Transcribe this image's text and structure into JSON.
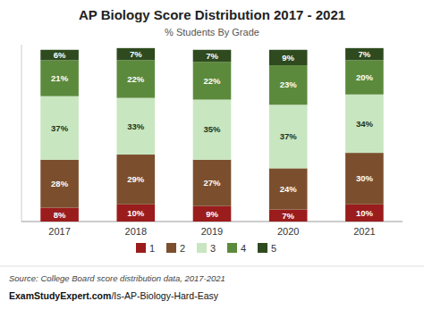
{
  "chart_data": {
    "type": "bar",
    "stacked": true,
    "title": "AP Biology Score Distribution 2017 - 2021",
    "subtitle": "% Students By Grade",
    "categories": [
      "2017",
      "2018",
      "2019",
      "2020",
      "2021"
    ],
    "series": [
      {
        "name": "1",
        "color": "#9B1C1C",
        "values": [
          8,
          10,
          9,
          7,
          10
        ],
        "value_labels": [
          "8%",
          "10%",
          "9%",
          "7%",
          "10%"
        ]
      },
      {
        "name": "2",
        "color": "#7B4F2E",
        "values": [
          28,
          29,
          27,
          24,
          30
        ],
        "value_labels": [
          "28%",
          "29%",
          "27%",
          "24%",
          "30%"
        ]
      },
      {
        "name": "3",
        "color": "#C8E6C0",
        "values": [
          37,
          33,
          35,
          37,
          34
        ],
        "value_labels": [
          "37%",
          "33%",
          "35%",
          "37%",
          "34%"
        ]
      },
      {
        "name": "4",
        "color": "#5C8A3C",
        "values": [
          21,
          22,
          22,
          23,
          20
        ],
        "value_labels": [
          "21%",
          "22%",
          "22%",
          "23%",
          "20%"
        ]
      },
      {
        "name": "5",
        "color": "#2E4A1E",
        "values": [
          6,
          7,
          7,
          9,
          7
        ],
        "value_labels": [
          "6%",
          "7%",
          "7%",
          "9%",
          "7%"
        ]
      }
    ],
    "ylim": [
      0,
      103
    ],
    "yticks": [],
    "tick_labels": "x",
    "grid": false,
    "legend": "bottom",
    "data_labels": true,
    "annotations": [
      "Source: College Board score distribution data, 2017-2021",
      "ExamStudyExpert.com",
      "/Is-AP-Biology-Hard-Easy"
    ]
  }
}
